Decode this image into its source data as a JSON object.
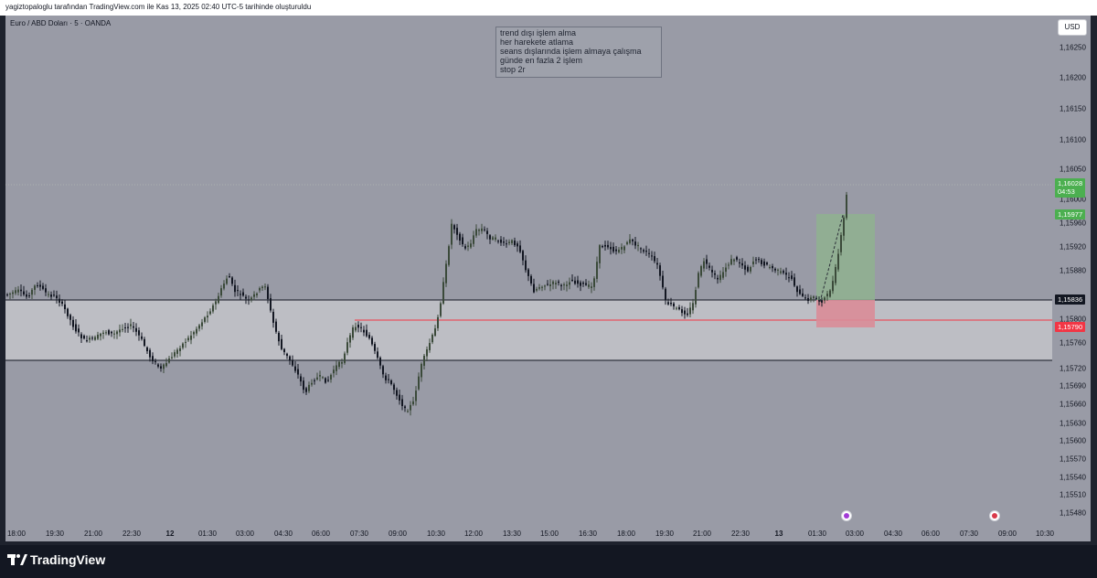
{
  "header": {
    "attribution": "yagiztopaloglu tarafından TradingView.com ile Kas 13, 2025 02:40 UTC-5 tarihinde oluşturuldu"
  },
  "symbol": {
    "title": "Euro / ABD Doları · 5 · OANDA"
  },
  "currency_button": "USD",
  "note": {
    "lines": [
      "trend dışı işlem alma",
      "her harekete atlama",
      "seans dışlarında işlem almaya çalışma",
      "günde en fazla 2 işlem",
      "stop 2r"
    ]
  },
  "price_axis": {
    "ticks": [
      "1,16250",
      "1,16200",
      "1,16150",
      "1,16100",
      "1,16050",
      "1,16000",
      "1,15960",
      "1,15920",
      "1,15880",
      "1,15800",
      "1,15760",
      "1,15720",
      "1,15690",
      "1,15660",
      "1,15630",
      "1,15600",
      "1,15570",
      "1,15540",
      "1,15510",
      "1,15480"
    ]
  },
  "price_labels": {
    "last_price": "1,16028",
    "countdown": "04:53",
    "target": "1,15977",
    "zone_top": "1,15836",
    "stop": "1,15790"
  },
  "time_axis": {
    "ticks": [
      "18:00",
      "19:30",
      "21:00",
      "22:30",
      "12",
      "01:30",
      "03:00",
      "04:30",
      "06:00",
      "07:30",
      "09:00",
      "10:30",
      "12:00",
      "13:30",
      "15:00",
      "16:30",
      "18:00",
      "19:30",
      "21:00",
      "22:30",
      "13",
      "01:30",
      "03:00",
      "04:30",
      "06:00",
      "07:30",
      "09:00",
      "10:30"
    ],
    "bold_ticks": [
      "12",
      "13"
    ]
  },
  "footer": {
    "brand": "TradingView"
  },
  "colors": {
    "chart_bg": "#999ba6",
    "candle_up": "#3b4a3a",
    "candle_down": "#131722",
    "zone_fill": "#bdbec4",
    "target_zone": "#8fb28f",
    "stop_zone": "#d98c98",
    "target_label": "#4caf50",
    "stop_label": "#f23645",
    "zone_label": "#131722"
  },
  "icons": {
    "event_1": "lightning-event-icon",
    "event_2": "us-flag-event-icon",
    "logo": "tradingview-logo-icon"
  }
}
